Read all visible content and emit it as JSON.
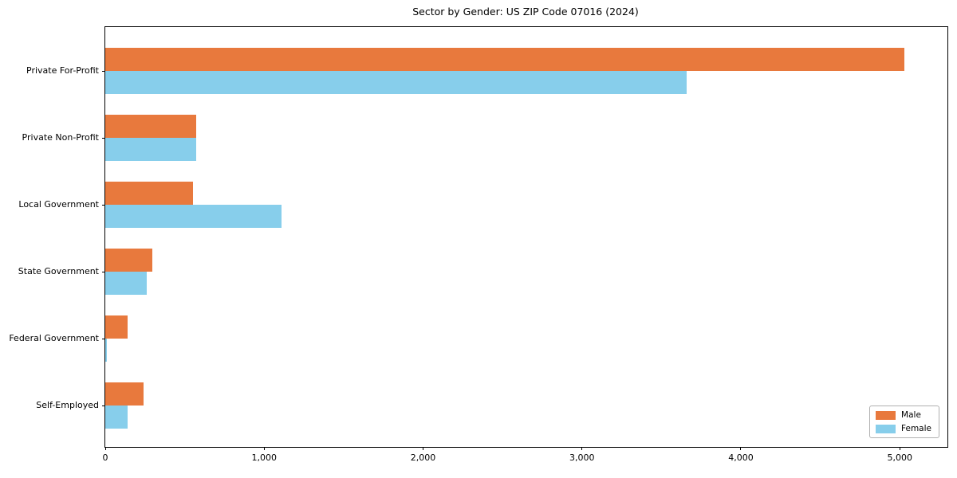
{
  "chart_data": {
    "type": "bar",
    "orientation": "horizontal",
    "title": "Sector by Gender: US ZIP Code 07016 (2024)",
    "categories": [
      "Private For-Profit",
      "Private Non-Profit",
      "Local Government",
      "State Government",
      "Federal Government",
      "Self-Employed"
    ],
    "series": [
      {
        "name": "Male",
        "color": "#e8793d",
        "values": [
          5030,
          570,
          550,
          295,
          140,
          240
        ]
      },
      {
        "name": "Female",
        "color": "#87ceeb",
        "values": [
          3660,
          570,
          1110,
          260,
          10,
          140
        ]
      }
    ],
    "xlim": [
      0,
      5300
    ],
    "x_ticks": [
      0,
      1000,
      2000,
      3000,
      4000,
      5000
    ],
    "x_tick_labels": [
      "0",
      "1,000",
      "2,000",
      "3,000",
      "4,000",
      "5,000"
    ],
    "grid": false,
    "background_color": "#ffffff",
    "spine_color": "#000000",
    "legend": {
      "position": "lower right",
      "entries": [
        "Male",
        "Female"
      ]
    }
  }
}
